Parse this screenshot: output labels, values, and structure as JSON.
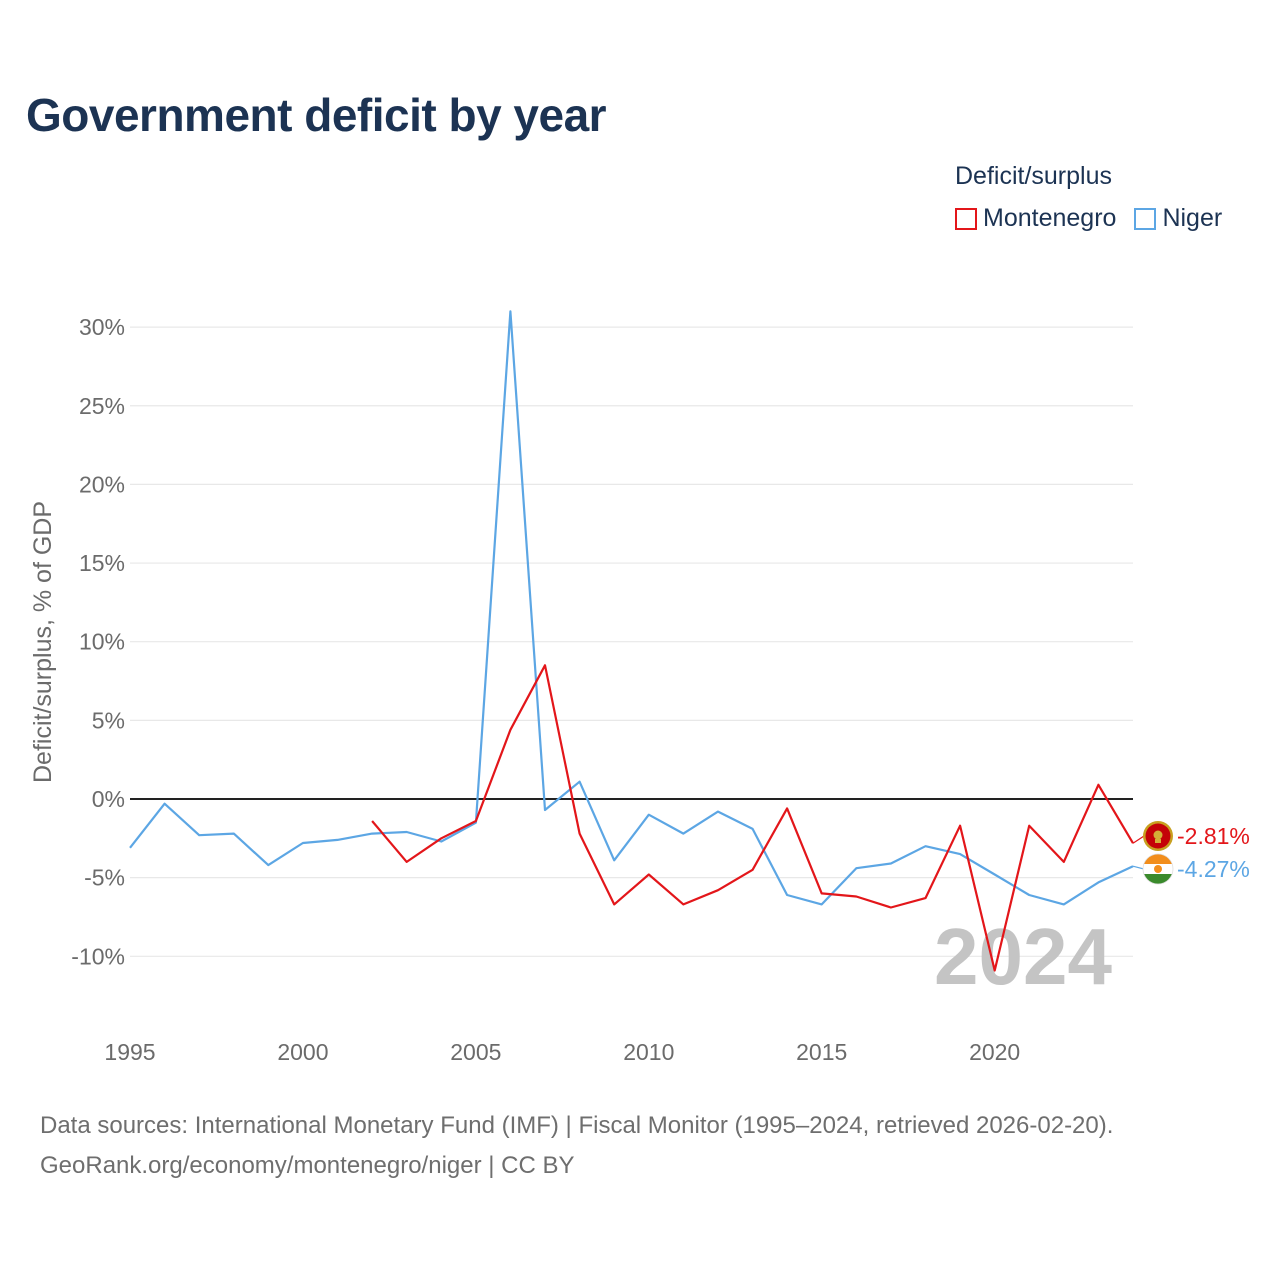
{
  "title": "Government deficit by year",
  "legend": {
    "title": "Deficit/surplus",
    "items": [
      {
        "name": "Montenegro",
        "color": "#e3161a"
      },
      {
        "name": "Niger",
        "color": "#5ca6e4"
      }
    ]
  },
  "sources": {
    "line1": "Data sources: International Monetary Fund (IMF) | Fiscal Monitor (1995–2024, retrieved 2026-02-20).",
    "line2": "GeoRank.org/economy/montenegro/niger | CC BY"
  },
  "chart_data": {
    "type": "line",
    "title": "Government deficit by year",
    "xlabel": "",
    "ylabel": "Deficit/surplus, % of GDP",
    "xlim": [
      1995,
      2024
    ],
    "ylim": [
      -13,
      32
    ],
    "x_ticks": [
      1995,
      2000,
      2005,
      2010,
      2015,
      2020
    ],
    "x_tick_labels": [
      "1995",
      "2000",
      "2005",
      "2010",
      "2015",
      "2020"
    ],
    "y_ticks": [
      -10,
      -5,
      0,
      5,
      10,
      15,
      20,
      25,
      30
    ],
    "y_tick_labels": [
      "-10%",
      "-5%",
      "0%",
      "5%",
      "10%",
      "15%",
      "20%",
      "25%",
      "30%"
    ],
    "watermark": "2024",
    "series": [
      {
        "name": "Montenegro",
        "color": "#e3161a",
        "end_label": "-2.81%",
        "x": [
          2002,
          2003,
          2004,
          2005,
          2006,
          2007,
          2008,
          2009,
          2010,
          2011,
          2012,
          2013,
          2014,
          2015,
          2016,
          2017,
          2018,
          2019,
          2020,
          2021,
          2022,
          2023,
          2024
        ],
        "values": [
          -1.4,
          -4.0,
          -2.5,
          -1.4,
          4.4,
          8.5,
          -2.2,
          -6.7,
          -4.8,
          -6.7,
          -5.8,
          -4.5,
          -0.6,
          -6.0,
          -6.2,
          -6.9,
          -6.3,
          -1.7,
          -10.9,
          -1.7,
          -4.0,
          0.9,
          -2.81
        ]
      },
      {
        "name": "Niger",
        "color": "#5ca6e4",
        "end_label": "-4.27%",
        "x": [
          1995,
          1996,
          1997,
          1998,
          1999,
          2000,
          2001,
          2002,
          2003,
          2004,
          2005,
          2006,
          2007,
          2008,
          2009,
          2010,
          2011,
          2012,
          2013,
          2014,
          2015,
          2016,
          2017,
          2018,
          2019,
          2020,
          2021,
          2022,
          2023,
          2024
        ],
        "values": [
          -3.1,
          -0.3,
          -2.3,
          -2.2,
          -4.2,
          -2.8,
          -2.6,
          -2.2,
          -2.1,
          -2.7,
          -1.5,
          31.0,
          -0.7,
          1.1,
          -3.9,
          -1.0,
          -2.2,
          -0.8,
          -1.9,
          -6.1,
          -6.7,
          -4.4,
          -4.1,
          -3.0,
          -3.5,
          -4.8,
          -6.1,
          -6.7,
          -5.3,
          -4.27
        ]
      }
    ]
  }
}
